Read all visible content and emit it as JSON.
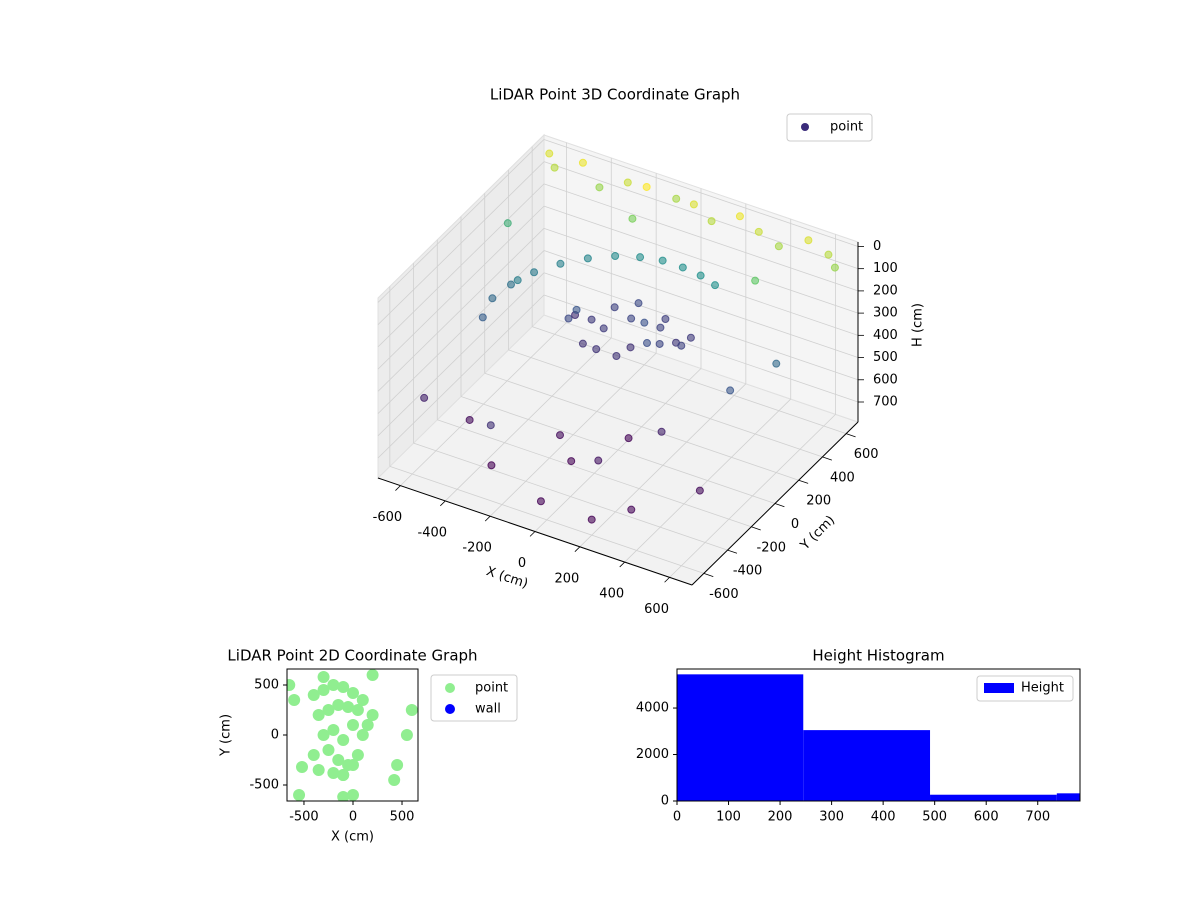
{
  "chart_data": [
    {
      "type": "scatter3d",
      "title": "LiDAR Point 3D Coordinate Graph",
      "xlabel": "X (cm)",
      "ylabel": "Y (cm)",
      "zlabel": "H (cm)",
      "xlim": [
        -700,
        700
      ],
      "ylim": [
        -700,
        700
      ],
      "zlim": [
        790,
        -20
      ],
      "xticks": [
        -600,
        -400,
        -200,
        0,
        200,
        400,
        600
      ],
      "yticks": [
        -600,
        -400,
        -200,
        0,
        200,
        400,
        600
      ],
      "zticks": [
        0,
        100,
        200,
        300,
        400,
        500,
        600,
        700
      ],
      "colormap": "viridis",
      "color_by": "z",
      "color_reversed": true,
      "grid": true,
      "legend": "upper right",
      "series": [
        {
          "name": "point",
          "color": "#3b2c7b",
          "x": [
            -300,
            -250,
            -200,
            -150,
            -100,
            -50,
            0,
            50,
            100,
            150,
            -350,
            -280,
            -180,
            -120,
            -60,
            20,
            80,
            140,
            -220,
            -20,
            -550,
            -560,
            -530,
            -480,
            -410,
            -330,
            -240,
            -150,
            -60,
            30,
            120,
            200,
            -650,
            -600,
            -500,
            -400,
            -300,
            -200,
            -100,
            0,
            100,
            200,
            300,
            400,
            500,
            600,
            650,
            -600,
            -450,
            -250,
            -50,
            150,
            350,
            550,
            600,
            500,
            300,
            100,
            -100,
            -300,
            -500,
            -650,
            400,
            200,
            0,
            -200
          ],
          "y": [
            150,
            250,
            350,
            100,
            300,
            200,
            400,
            150,
            300,
            250,
            300,
            180,
            220,
            400,
            100,
            320,
            200,
            350,
            120,
            260,
            -100,
            0,
            100,
            200,
            290,
            370,
            430,
            470,
            490,
            490,
            470,
            440,
            650,
            600,
            650,
            600,
            650,
            620,
            680,
            640,
            600,
            650,
            620,
            600,
            660,
            640,
            600,
            -500,
            -400,
            -600,
            -300,
            -450,
            -550,
            -350,
            200,
            0,
            -200,
            -100,
            -300,
            -500,
            100,
            300,
            400,
            -600,
            -650,
            500
          ],
          "z": [
            380,
            420,
            400,
            440,
            390,
            450,
            410,
            370,
            430,
            400,
            460,
            350,
            420,
            380,
            440,
            400,
            390,
            420,
            450,
            360,
            330,
            300,
            280,
            260,
            245,
            235,
            225,
            220,
            215,
            215,
            210,
            210,
            20,
            40,
            10,
            60,
            30,
            0,
            50,
            20,
            40,
            10,
            30,
            50,
            20,
            40,
            60,
            500,
            600,
            450,
            700,
            550,
            650,
            600,
            300,
            350,
            500,
            650,
            600,
            700,
            250,
            150,
            100,
            720,
            680,
            80
          ]
        }
      ]
    },
    {
      "type": "scatter",
      "title": "LiDAR Point 2D Coordinate Graph",
      "xlabel": "X (cm)",
      "ylabel": "Y (cm)",
      "xlim": [
        -673,
        663
      ],
      "ylim": [
        -660,
        660
      ],
      "xticks": [
        -500,
        0,
        500
      ],
      "yticks": [
        -500,
        0,
        500
      ],
      "legend": "outside right",
      "series": [
        {
          "name": "point",
          "color": "#90ee90",
          "x": [
            -400,
            -300,
            -200,
            -100,
            0,
            100,
            200,
            -350,
            -250,
            -150,
            -50,
            50,
            150,
            -300,
            -200,
            -100,
            0,
            100,
            -400,
            -250,
            -150,
            -50,
            50,
            -350,
            -200,
            -100,
            0,
            -600,
            -650,
            600,
            550,
            450,
            -550,
            -100,
            0,
            200,
            420,
            -520,
            -300,
            -100
          ],
          "y": [
            400,
            450,
            500,
            480,
            420,
            350,
            200,
            200,
            250,
            300,
            280,
            250,
            100,
            0,
            50,
            -50,
            100,
            0,
            -200,
            -150,
            -250,
            -300,
            -200,
            -350,
            -380,
            -400,
            -300,
            350,
            500,
            250,
            0,
            -300,
            -600,
            -620,
            -600,
            600,
            -450,
            -320,
            580,
            -400
          ]
        },
        {
          "name": "wall",
          "color": "#0000ff",
          "x": [],
          "y": []
        }
      ]
    },
    {
      "type": "histogram",
      "title": "Height Histogram",
      "xlim": [
        0,
        782
      ],
      "ylim": [
        0,
        5680
      ],
      "xticks": [
        0,
        100,
        200,
        300,
        400,
        500,
        600,
        700
      ],
      "yticks": [
        0,
        2000,
        4000
      ],
      "legend": "upper right",
      "series": [
        {
          "name": "Height",
          "color": "#0000ff",
          "bins": [
            0,
            245,
            491,
            737,
            983
          ],
          "values": [
            5450,
            3050,
            270,
            330
          ]
        }
      ]
    }
  ]
}
